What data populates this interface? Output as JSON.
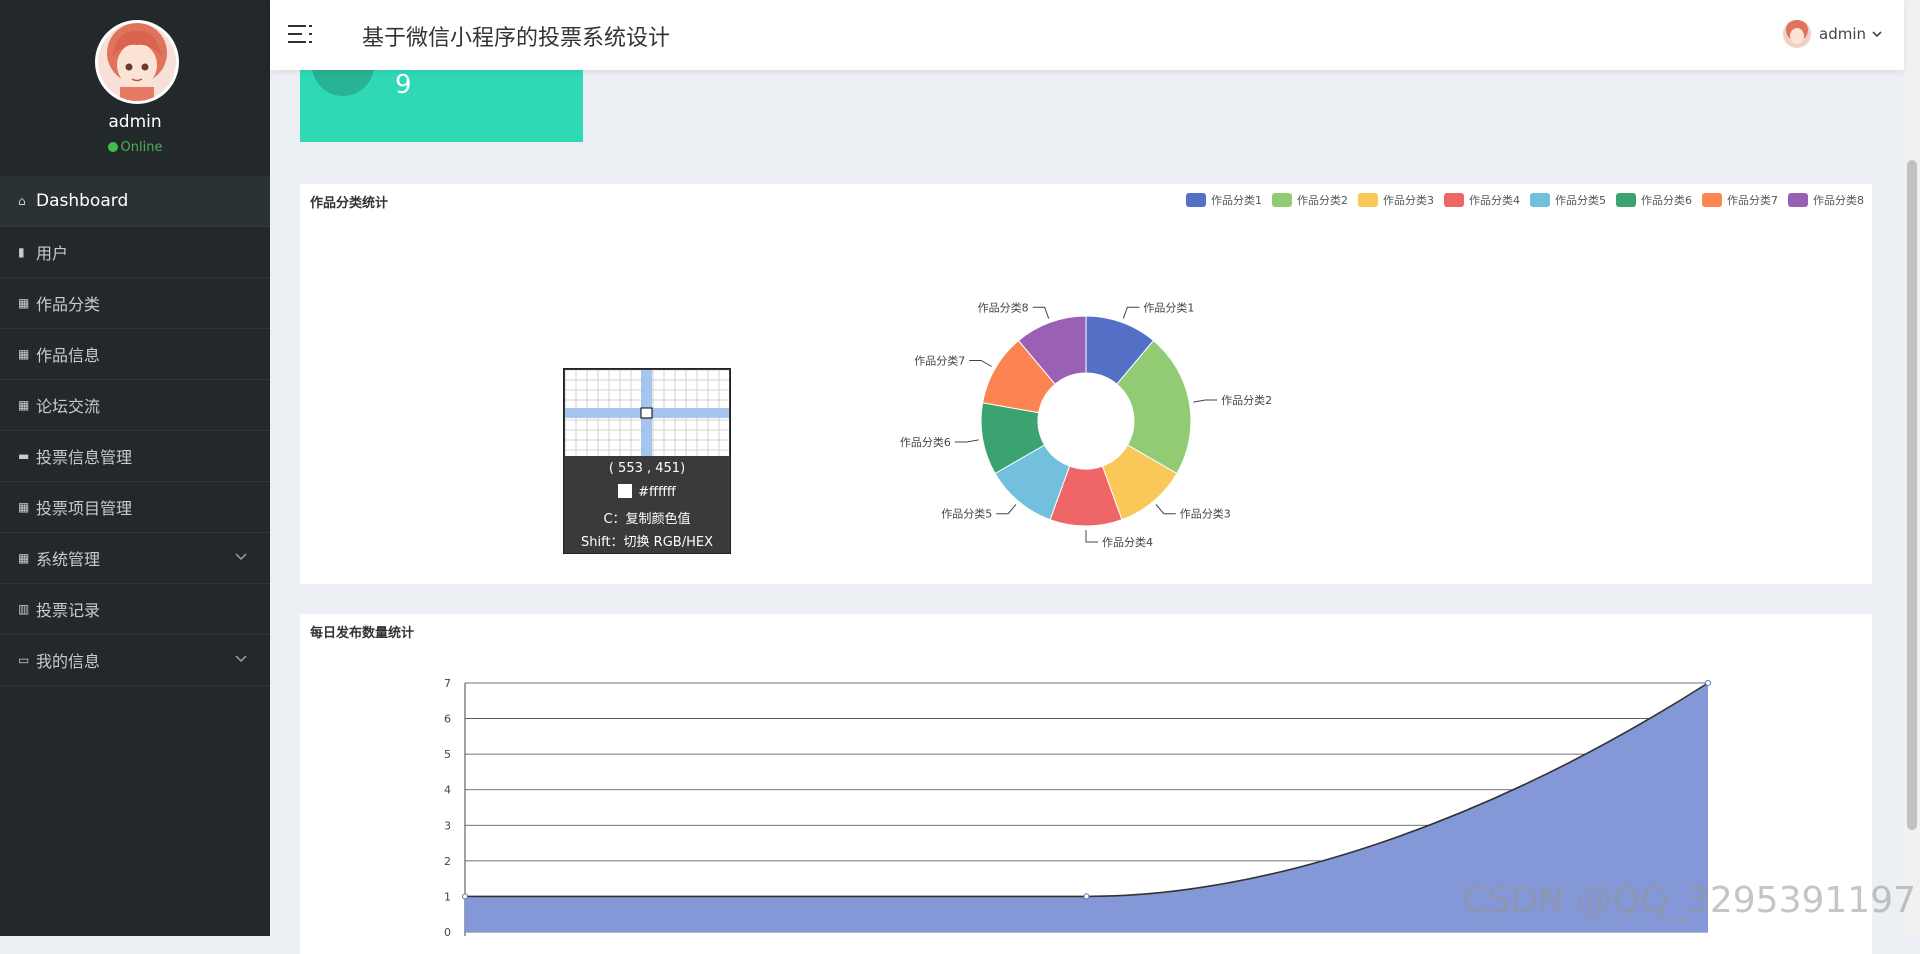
{
  "app": {
    "title": "基于微信小程序的投票系统设计"
  },
  "profile": {
    "name": "admin",
    "status": "Online"
  },
  "header_user": {
    "name": "admin"
  },
  "sidebar": {
    "items": [
      {
        "label": "Dashboard",
        "icon": "home-icon"
      },
      {
        "label": "用户",
        "icon": "users-icon"
      },
      {
        "label": "作品分类",
        "icon": "grid-icon"
      },
      {
        "label": "作品信息",
        "icon": "grid-icon"
      },
      {
        "label": "论坛交流",
        "icon": "grid-icon"
      },
      {
        "label": "投票信息管理",
        "icon": "ticket-icon"
      },
      {
        "label": "投票项目管理",
        "icon": "grid-icon"
      },
      {
        "label": "系统管理",
        "icon": "grid-icon"
      },
      {
        "label": "投票记录",
        "icon": "bar-chart-icon"
      },
      {
        "label": "我的信息",
        "icon": "card-icon"
      }
    ]
  },
  "stat_card": {
    "value": "9"
  },
  "pie_panel": {
    "title": "作品分类统计"
  },
  "line_panel": {
    "title": "每日发布数量统计"
  },
  "color_picker": {
    "coord": "( 553 , 451)",
    "hex": "#ffffff",
    "tip_copy": "C：复制颜色值",
    "tip_shift": "Shift：切换 RGB/HEX"
  },
  "watermark": "CSDN @QQ_3295391197",
  "colors": {
    "sidebar_bg": "#23282b",
    "stat_card": "#2fd9b6",
    "area_fill": "#8497d6"
  },
  "chart_data": [
    {
      "type": "pie",
      "title": "作品分类统计",
      "donut": true,
      "legend_position": "top-right",
      "categories": [
        "作品分类1",
        "作品分类2",
        "作品分类3",
        "作品分类4",
        "作品分类5",
        "作品分类6",
        "作品分类7",
        "作品分类8"
      ],
      "values": [
        1,
        2,
        1,
        1,
        1,
        1,
        1,
        1
      ],
      "colors": [
        "#5470c6",
        "#91cc75",
        "#fac858",
        "#ee6666",
        "#73c0de",
        "#3ba272",
        "#fc8452",
        "#9a60b4"
      ]
    },
    {
      "type": "area",
      "title": "每日发布数量统计",
      "ylim": [
        0,
        7
      ],
      "yticks": [
        0,
        1,
        2,
        3,
        4,
        5,
        6,
        7
      ],
      "grid": true,
      "x": [
        0,
        1,
        2
      ],
      "values": [
        1,
        1,
        7
      ]
    }
  ]
}
